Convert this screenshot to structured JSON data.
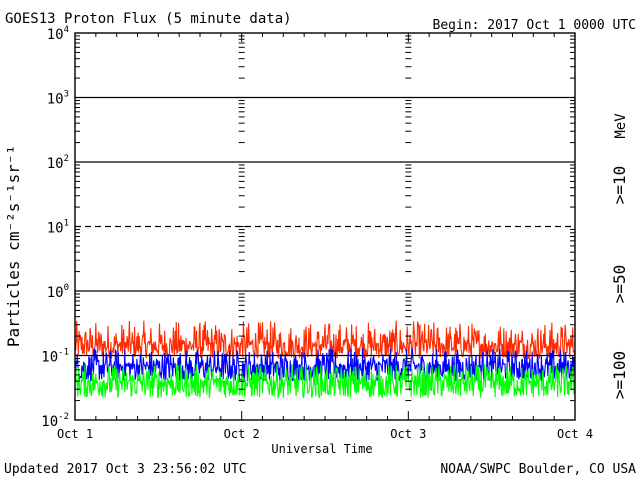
{
  "header": {
    "title": "GOES13 Proton Flux (5 minute data)",
    "begin": "Begin: 2017 Oct 1 0000 UTC"
  },
  "footer": {
    "updated": "Updated 2017 Oct  3 23:56:02 UTC",
    "credit": "NOAA/SWPC Boulder, CO USA"
  },
  "chart_data": {
    "type": "line",
    "title": "GOES13 Proton Flux (5 minute data)",
    "xlabel": "Universal Time",
    "ylabel": "Particles cm⁻²s⁻¹sr⁻¹",
    "y_scale": "log",
    "ylim": [
      0.01,
      10000
    ],
    "xlim": [
      "2017-10-01 00:00",
      "2017-10-04 00:00"
    ],
    "x_ticks": [
      "Oct 1",
      "Oct 2",
      "Oct 3",
      "Oct 4"
    ],
    "y_ticks": [
      {
        "base": "10",
        "exp": "-2"
      },
      {
        "base": "10",
        "exp": "-1"
      },
      {
        "base": "10",
        "exp": "0"
      },
      {
        "base": "10",
        "exp": "1"
      },
      {
        "base": "10",
        "exp": "2"
      },
      {
        "base": "10",
        "exp": "3"
      },
      {
        "base": "10",
        "exp": "4"
      }
    ],
    "unit_label": "MeV",
    "threshold_lines": [
      {
        "value": 10,
        "style": "dashed"
      },
      {
        "value": 1,
        "style": "solid"
      },
      {
        "value": 0.1,
        "style": "solid"
      }
    ],
    "series": [
      {
        "name": ">=10",
        "color": "#ff2a00",
        "approx_mean": 0.15,
        "approx_range": [
          0.09,
          0.35
        ]
      },
      {
        "name": ">=50",
        "color": "#0000ff",
        "approx_mean": 0.07,
        "approx_range": [
          0.04,
          0.13
        ]
      },
      {
        "name": ">=100",
        "color": "#00ff00",
        "approx_mean": 0.04,
        "approx_range": [
          0.022,
          0.075
        ]
      }
    ]
  }
}
